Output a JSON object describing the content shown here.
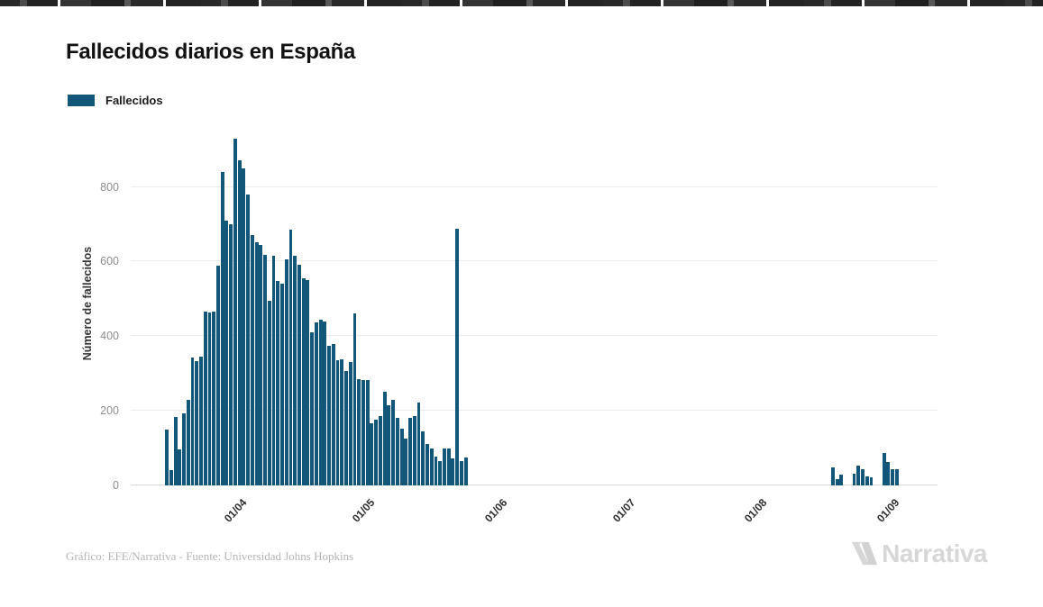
{
  "title": "Fallecidos diarios en España",
  "legend": {
    "label": "Fallecidos",
    "color": "#125679"
  },
  "y_axis": {
    "title": "Número de fallecidos",
    "ticks": [
      0,
      200,
      400,
      600,
      800
    ]
  },
  "x_axis": {
    "tick_labels": [
      "01/04",
      "01/05",
      "01/06",
      "01/07",
      "01/08",
      "01/09"
    ]
  },
  "footer": {
    "credit": "Gráfico: EFE/Narrativa - Fuente: Universidad Johns Hopkins"
  },
  "logo": {
    "text": "Narrativa"
  },
  "chart_data": {
    "type": "bar",
    "title": "Fallecidos diarios en España",
    "series_name": "Fallecidos",
    "xlabel": "",
    "ylabel": "Número de fallecidos",
    "ylim": [
      0,
      963
    ],
    "grid": "horizontal",
    "legend_position": "top-left",
    "bar_color": "#125679",
    "start_date": "2020-03-07",
    "end_date": "2020-09-11",
    "x_tick_dates": [
      "2020-04-01",
      "2020-05-01",
      "2020-06-01",
      "2020-07-01",
      "2020-08-01",
      "2020-09-01"
    ],
    "x_tick_labels": [
      "01/04",
      "01/05",
      "01/06",
      "01/07",
      "01/08",
      "01/09"
    ],
    "values": [
      0,
      0,
      0,
      0,
      0,
      0,
      0,
      0,
      150,
      40,
      183,
      97,
      193,
      230,
      342,
      333,
      345,
      465,
      463,
      467,
      590,
      841,
      710,
      700,
      930,
      872,
      850,
      780,
      672,
      651,
      645,
      617,
      496,
      616,
      549,
      540,
      605,
      686,
      616,
      591,
      554,
      550,
      411,
      436,
      444,
      440,
      375,
      378,
      335,
      337,
      306,
      331,
      460,
      285,
      282,
      282,
      167,
      177,
      185,
      250,
      216,
      230,
      182,
      151,
      125,
      182,
      187,
      222,
      145,
      111,
      98,
      77,
      66,
      100,
      100,
      73,
      688,
      65,
      76,
      0,
      0,
      0,
      0,
      0,
      0,
      0,
      0,
      0,
      0,
      0,
      0,
      0,
      0,
      0,
      0,
      0,
      0,
      0,
      0,
      0,
      0,
      0,
      0,
      0,
      0,
      0,
      0,
      0,
      0,
      0,
      0,
      0,
      0,
      0,
      0,
      0,
      0,
      0,
      0,
      0,
      0,
      0,
      0,
      0,
      0,
      0,
      0,
      0,
      0,
      0,
      0,
      0,
      0,
      0,
      0,
      0,
      0,
      0,
      0,
      0,
      0,
      0,
      0,
      0,
      0,
      0,
      0,
      0,
      0,
      0,
      0,
      0,
      0,
      0,
      0,
      0,
      0,
      0,
      0,
      0,
      0,
      0,
      0,
      0,
      48,
      18,
      28,
      0,
      0,
      31,
      54,
      44,
      23,
      22,
      0,
      0,
      88,
      62,
      44,
      44,
      0,
      0,
      0,
      0,
      0,
      0,
      0,
      0,
      0
    ]
  }
}
